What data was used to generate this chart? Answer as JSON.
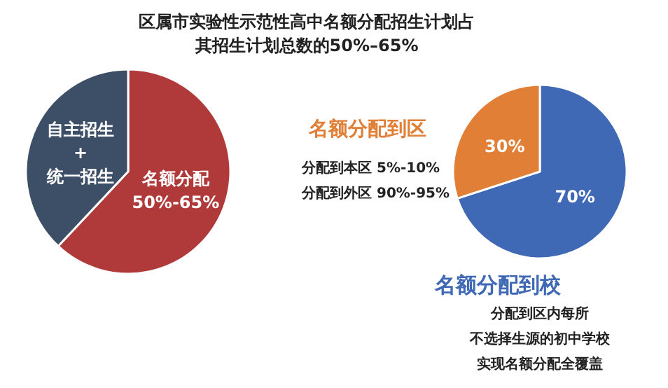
{
  "chart_data": [
    {
      "type": "pie",
      "title": "区属市实验性示范性高中名额分配招生计划占其招生计划总数的50%–65%",
      "categories": [
        "名额分配\n50%-65%",
        "自主招生\n+\n统一招生"
      ],
      "values": [
        62,
        38
      ],
      "colors": [
        "#b03a3a",
        "#3d4f66"
      ]
    },
    {
      "type": "pie",
      "categories": [
        "名额分配到校",
        "名额分配到区"
      ],
      "values": [
        70,
        30
      ],
      "colors": [
        "#3f68b5",
        "#e07f35"
      ],
      "value_labels": [
        "70%",
        "30%"
      ],
      "annotations": [
        "分配到本区 5%-10%",
        "分配到外区 90%-95%",
        "分配到区内每所",
        "不选择生源的初中学校",
        "实现名额分配全覆盖"
      ]
    }
  ]
}
